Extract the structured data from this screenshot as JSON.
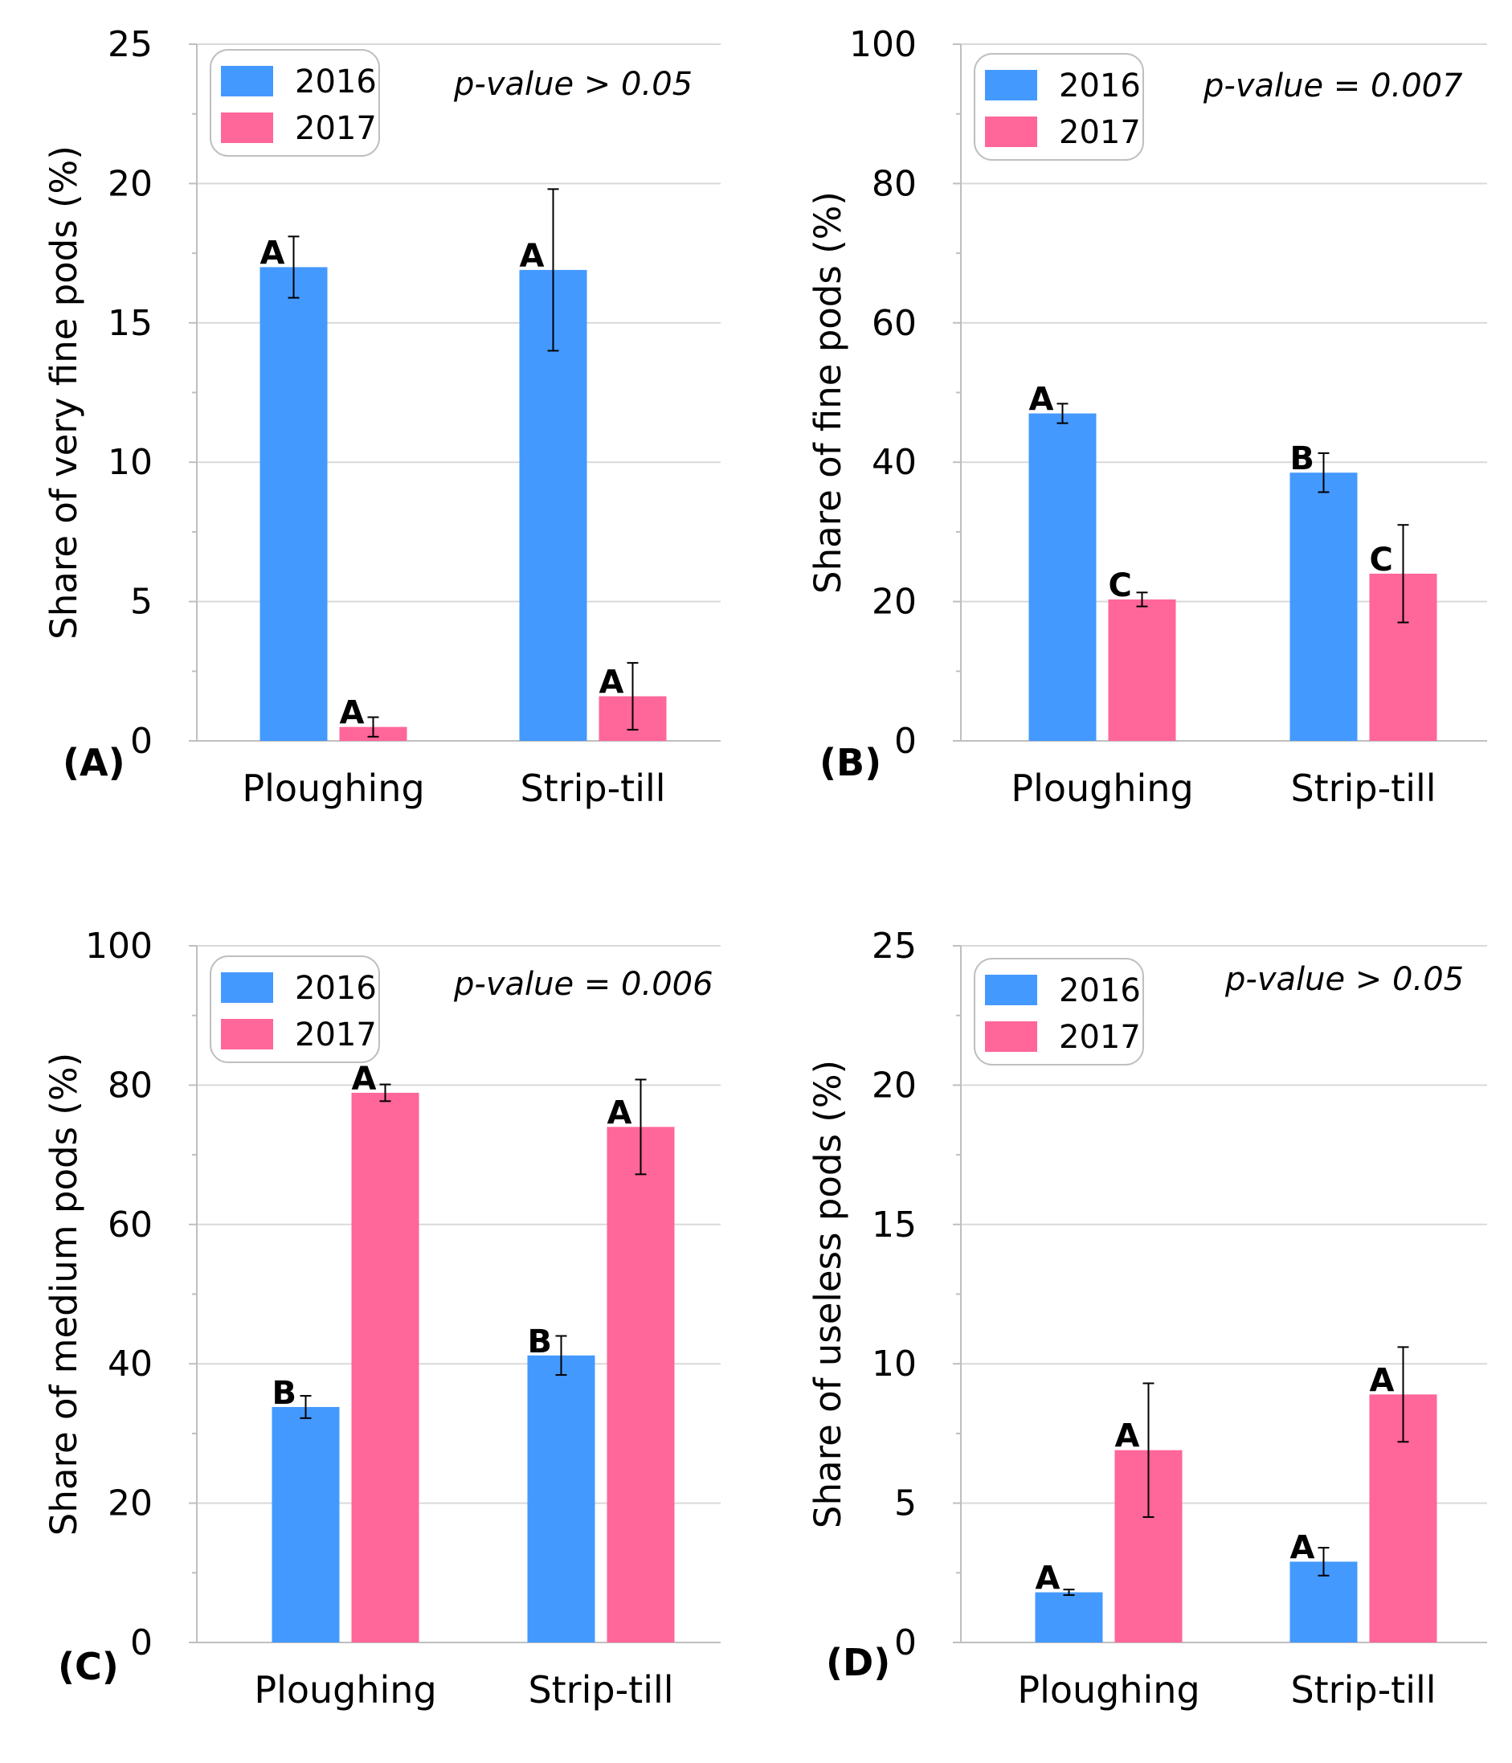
{
  "chart_data": [
    {
      "type": "bar",
      "panel": "(A)",
      "ylabel": "Share of very fine pods (%)",
      "ylim": [
        0,
        25
      ],
      "yticks": [
        "0",
        "5",
        "10",
        "15",
        "20",
        "25"
      ],
      "categories": [
        "Ploughing",
        "Strip-till"
      ],
      "p_value": "p-value > 0.05",
      "series": [
        {
          "name": "2016",
          "color": "#4499FF",
          "values": [
            17.0,
            16.9
          ],
          "errors": [
            1.1,
            2.9
          ],
          "letters": [
            "A",
            "A"
          ]
        },
        {
          "name": "2017",
          "color": "#FF6699",
          "values": [
            0.5,
            1.6
          ],
          "errors": [
            0.35,
            1.2
          ],
          "letters": [
            "A",
            "A"
          ]
        }
      ]
    },
    {
      "type": "bar",
      "panel": "(B)",
      "ylabel": "Share of fine pods (%)",
      "ylim": [
        0,
        100
      ],
      "yticks": [
        "0",
        "20",
        "40",
        "60",
        "80",
        "100"
      ],
      "categories": [
        "Ploughing",
        "Strip-till"
      ],
      "p_value": "p-value = 0.007",
      "series": [
        {
          "name": "2016",
          "color": "#4499FF",
          "values": [
            47.0,
            38.5
          ],
          "errors": [
            1.4,
            2.8
          ],
          "letters": [
            "A",
            "B"
          ]
        },
        {
          "name": "2017",
          "color": "#FF6699",
          "values": [
            20.3,
            24.0
          ],
          "errors": [
            1.0,
            7.0
          ],
          "letters": [
            "C",
            "C"
          ]
        }
      ]
    },
    {
      "type": "bar",
      "panel": "(C)",
      "ylabel": "Share of medium pods (%)",
      "ylim": [
        0,
        100
      ],
      "yticks": [
        "0",
        "20",
        "40",
        "60",
        "80",
        "100"
      ],
      "categories": [
        "Ploughing",
        "Strip-till"
      ],
      "p_value": "p-value = 0.006",
      "series": [
        {
          "name": "2016",
          "color": "#4499FF",
          "values": [
            33.8,
            41.2
          ],
          "errors": [
            1.6,
            2.8
          ],
          "letters": [
            "B",
            "B"
          ]
        },
        {
          "name": "2017",
          "color": "#FF6699",
          "values": [
            78.9,
            74.0
          ],
          "errors": [
            1.2,
            6.8
          ],
          "letters": [
            "A",
            "A"
          ]
        }
      ]
    },
    {
      "type": "bar",
      "panel": "(D)",
      "ylabel": "Share of useless pods (%)",
      "ylim": [
        0,
        25
      ],
      "yticks": [
        "0",
        "5",
        "10",
        "15",
        "20",
        "25"
      ],
      "categories": [
        "Ploughing",
        "Strip-till"
      ],
      "p_value": "p-value > 0.05",
      "series": [
        {
          "name": "2016",
          "color": "#4499FF",
          "values": [
            1.8,
            2.9
          ],
          "errors": [
            0.1,
            0.5
          ],
          "letters": [
            "A",
            "A"
          ]
        },
        {
          "name": "2017",
          "color": "#FF6699",
          "values": [
            6.9,
            8.9
          ],
          "errors": [
            2.4,
            1.7
          ],
          "letters": [
            "A",
            "A"
          ]
        }
      ]
    }
  ]
}
